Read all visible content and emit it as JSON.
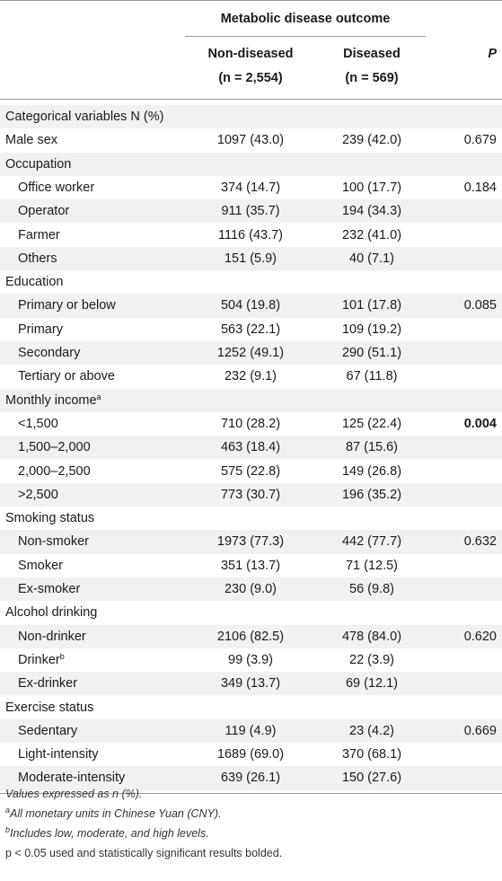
{
  "header": {
    "group_title": "Metabolic disease outcome",
    "col1_label": "Non-diseased",
    "col1_n": "(n = 2,554)",
    "col2_label": "Diseased",
    "col2_n": "(n = 569)",
    "col3_label": "P"
  },
  "rows": [
    {
      "label": "Categorical variables N (%)",
      "indent": false,
      "nd": "",
      "d": "",
      "p": "",
      "bold": false,
      "shade": true
    },
    {
      "label": "Male sex",
      "indent": false,
      "nd": "1097 (43.0)",
      "d": "239 (42.0)",
      "p": "0.679",
      "bold": false,
      "shade": false
    },
    {
      "label": "Occupation",
      "indent": false,
      "nd": "",
      "d": "",
      "p": "",
      "bold": false,
      "shade": true
    },
    {
      "label": "Office worker",
      "indent": true,
      "nd": "374 (14.7)",
      "d": "100 (17.7)",
      "p": "0.184",
      "bold": false,
      "shade": false
    },
    {
      "label": "Operator",
      "indent": true,
      "nd": "911 (35.7)",
      "d": "194 (34.3)",
      "p": "",
      "bold": false,
      "shade": true
    },
    {
      "label": "Farmer",
      "indent": true,
      "nd": "1116 (43.7)",
      "d": "232 (41.0)",
      "p": "",
      "bold": false,
      "shade": false
    },
    {
      "label": "Others",
      "indent": true,
      "nd": "151 (5.9)",
      "d": "40 (7.1)",
      "p": "",
      "bold": false,
      "shade": true
    },
    {
      "label": "Education",
      "indent": false,
      "nd": "",
      "d": "",
      "p": "",
      "bold": false,
      "shade": false
    },
    {
      "label": "Primary or below",
      "indent": true,
      "nd": "504 (19.8)",
      "d": "101 (17.8)",
      "p": "0.085",
      "bold": false,
      "shade": true
    },
    {
      "label": "Primary",
      "indent": true,
      "nd": "563 (22.1)",
      "d": "109 (19.2)",
      "p": "",
      "bold": false,
      "shade": false
    },
    {
      "label": "Secondary",
      "indent": true,
      "nd": "1252 (49.1)",
      "d": "290 (51.1)",
      "p": "",
      "bold": false,
      "shade": true
    },
    {
      "label": "Tertiary or above",
      "indent": true,
      "nd": "232 (9.1)",
      "d": "67 (11.8)",
      "p": "",
      "bold": false,
      "shade": false
    },
    {
      "label": "Monthly income",
      "sup": "a",
      "indent": false,
      "nd": "",
      "d": "",
      "p": "",
      "bold": false,
      "shade": true
    },
    {
      "label": "<1,500",
      "indent": true,
      "nd": "710 (28.2)",
      "d": "125 (22.4)",
      "p": "0.004",
      "bold": true,
      "shade": false
    },
    {
      "label": "1,500–2,000",
      "indent": true,
      "nd": "463 (18.4)",
      "d": "87 (15.6)",
      "p": "",
      "bold": false,
      "shade": true
    },
    {
      "label": "2,000–2,500",
      "indent": true,
      "nd": "575 (22.8)",
      "d": "149 (26.8)",
      "p": "",
      "bold": false,
      "shade": false
    },
    {
      "label": ">2,500",
      "indent": true,
      "nd": "773 (30.7)",
      "d": "196 (35.2)",
      "p": "",
      "bold": false,
      "shade": true
    },
    {
      "label": "Smoking status",
      "indent": false,
      "nd": "",
      "d": "",
      "p": "",
      "bold": false,
      "shade": false
    },
    {
      "label": "Non-smoker",
      "indent": true,
      "nd": "1973 (77.3)",
      "d": "442 (77.7)",
      "p": "0.632",
      "bold": false,
      "shade": true
    },
    {
      "label": "Smoker",
      "indent": true,
      "nd": "351 (13.7)",
      "d": "71 (12.5)",
      "p": "",
      "bold": false,
      "shade": false
    },
    {
      "label": "Ex-smoker",
      "indent": true,
      "nd": "230 (9.0)",
      "d": "56 (9.8)",
      "p": "",
      "bold": false,
      "shade": true
    },
    {
      "label": "Alcohol drinking",
      "indent": false,
      "nd": "",
      "d": "",
      "p": "",
      "bold": false,
      "shade": false
    },
    {
      "label": "Non-drinker",
      "indent": true,
      "nd": "2106 (82.5)",
      "d": "478 (84.0)",
      "p": "0.620",
      "bold": false,
      "shade": true
    },
    {
      "label": "Drinker",
      "sup": "b",
      "indent": true,
      "nd": "99 (3.9)",
      "d": "22 (3.9)",
      "p": "",
      "bold": false,
      "shade": false
    },
    {
      "label": "Ex-drinker",
      "indent": true,
      "nd": "349 (13.7)",
      "d": "69 (12.1)",
      "p": "",
      "bold": false,
      "shade": true
    },
    {
      "label": "Exercise status",
      "indent": false,
      "nd": "",
      "d": "",
      "p": "",
      "bold": false,
      "shade": false
    },
    {
      "label": "Sedentary",
      "indent": true,
      "nd": "119 (4.9)",
      "d": "23 (4.2)",
      "p": "0.669",
      "bold": false,
      "shade": true
    },
    {
      "label": "Light-intensity",
      "indent": true,
      "nd": "1689 (69.0)",
      "d": "370 (68.1)",
      "p": "",
      "bold": false,
      "shade": false
    },
    {
      "label": "Moderate-intensity",
      "indent": true,
      "nd": "639 (26.1)",
      "d": "150 (27.6)",
      "p": "",
      "bold": false,
      "shade": true
    }
  ],
  "footnotes": {
    "values": "Values expressed as n (%).",
    "a_marker": "a",
    "a_text": "All monetary units in Chinese Yuan (CNY).",
    "b_marker": "b",
    "b_text": "Includes low, moderate, and high levels.",
    "p_text": "p < 0.05 used and statistically significant results bolded."
  },
  "colors": {
    "shade": "#f1f1f1",
    "rule": "#9a9a9a",
    "text": "#1a1a1a"
  }
}
